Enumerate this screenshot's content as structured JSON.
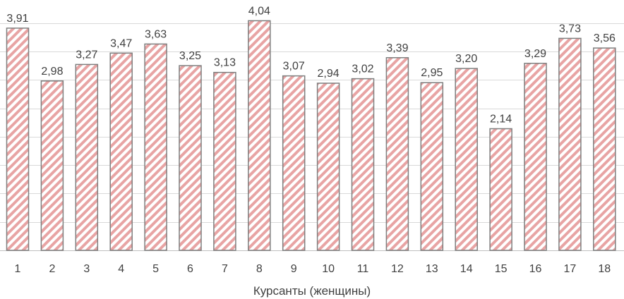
{
  "chart_data": {
    "type": "bar",
    "categories": [
      "1",
      "2",
      "3",
      "4",
      "5",
      "6",
      "7",
      "8",
      "9",
      "10",
      "11",
      "12",
      "13",
      "14",
      "15",
      "16",
      "17",
      "18"
    ],
    "values": [
      3.91,
      2.98,
      3.27,
      3.47,
      3.63,
      3.25,
      3.13,
      4.04,
      3.07,
      2.94,
      3.02,
      3.39,
      2.95,
      3.2,
      2.14,
      3.29,
      3.73,
      3.56
    ],
    "value_labels": [
      "3,91",
      "2,98",
      "3,27",
      "3,47",
      "3,63",
      "3,25",
      "3,13",
      "4,04",
      "3,07",
      "2,94",
      "3,02",
      "3,39",
      "2,95",
      "3,20",
      "2,14",
      "3,29",
      "3,73",
      "3,56"
    ],
    "title": "",
    "xlabel": "Курсанты  (женщины)",
    "ylabel": "",
    "ylim": [
      0,
      4.4
    ],
    "grid": true,
    "legend": "none",
    "colors": {
      "bar_outline": "#7f7f7f",
      "hatch": "#e8a4a4",
      "gridline": "#d9d9d9",
      "text": "#404040"
    }
  }
}
